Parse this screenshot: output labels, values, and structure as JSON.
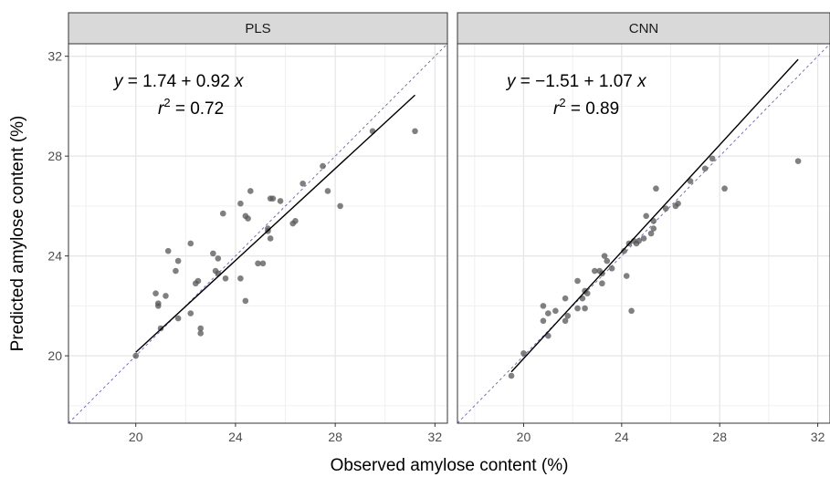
{
  "chart_data": {
    "type": "scatter",
    "xlabel": "Observed amylose content (%)",
    "ylabel": "Predicted amylose content (%)",
    "xlim": [
      17.3,
      32.5
    ],
    "ylim": [
      17.3,
      32.5
    ],
    "x_ticks": [
      20,
      24,
      28,
      32
    ],
    "y_ticks": [
      20,
      24,
      28,
      32
    ],
    "grid": true,
    "reference_line": "y = x",
    "panels": [
      {
        "name": "PLS",
        "equation": {
          "y": "y",
          "eq": " = 1.74 + 0.92 ",
          "x": "x"
        },
        "r2": {
          "r": "r",
          "sup": "2",
          "eq": " = 0.72"
        },
        "fit": {
          "intercept": 1.74,
          "slope": 0.92,
          "x_range": [
            20.0,
            31.2
          ]
        },
        "points": [
          [
            20.0,
            20.0
          ],
          [
            20.8,
            22.5
          ],
          [
            20.9,
            22.1
          ],
          [
            20.9,
            22.0
          ],
          [
            21.0,
            21.1
          ],
          [
            21.2,
            22.4
          ],
          [
            21.3,
            24.2
          ],
          [
            21.6,
            23.4
          ],
          [
            21.7,
            23.8
          ],
          [
            21.7,
            21.5
          ],
          [
            22.2,
            24.5
          ],
          [
            22.2,
            21.7
          ],
          [
            22.4,
            22.9
          ],
          [
            22.5,
            23.0
          ],
          [
            22.6,
            21.1
          ],
          [
            22.6,
            20.9
          ],
          [
            23.1,
            24.1
          ],
          [
            23.2,
            23.4
          ],
          [
            23.3,
            23.3
          ],
          [
            23.3,
            23.9
          ],
          [
            23.5,
            25.7
          ],
          [
            23.6,
            23.1
          ],
          [
            24.2,
            26.1
          ],
          [
            24.2,
            23.1
          ],
          [
            24.4,
            25.6
          ],
          [
            24.4,
            22.2
          ],
          [
            24.5,
            25.5
          ],
          [
            24.6,
            26.6
          ],
          [
            24.9,
            23.7
          ],
          [
            25.1,
            23.7
          ],
          [
            25.3,
            25.0
          ],
          [
            25.3,
            25.1
          ],
          [
            25.4,
            24.7
          ],
          [
            25.4,
            26.3
          ],
          [
            25.5,
            26.3
          ],
          [
            25.8,
            26.2
          ],
          [
            26.3,
            25.3
          ],
          [
            26.4,
            25.4
          ],
          [
            26.7,
            26.9
          ],
          [
            27.5,
            27.6
          ],
          [
            27.7,
            26.6
          ],
          [
            28.2,
            26.0
          ],
          [
            29.5,
            29.0
          ],
          [
            31.2,
            29.0
          ]
        ]
      },
      {
        "name": "CNN",
        "equation": {
          "y": "y",
          "eq": " = −1.51 + 1.07 ",
          "x": "x"
        },
        "r2": {
          "r": "r",
          "sup": "2",
          "eq": " = 0.89"
        },
        "fit": {
          "intercept": -1.51,
          "slope": 1.07,
          "x_range": [
            19.5,
            31.2
          ]
        },
        "points": [
          [
            19.5,
            19.2
          ],
          [
            20.0,
            20.1
          ],
          [
            20.8,
            22.0
          ],
          [
            20.8,
            21.4
          ],
          [
            21.0,
            20.8
          ],
          [
            21.0,
            21.7
          ],
          [
            21.3,
            21.8
          ],
          [
            21.7,
            21.4
          ],
          [
            21.7,
            22.3
          ],
          [
            21.8,
            21.6
          ],
          [
            22.2,
            23.0
          ],
          [
            22.2,
            21.9
          ],
          [
            22.4,
            22.3
          ],
          [
            22.5,
            22.6
          ],
          [
            22.5,
            21.9
          ],
          [
            22.6,
            22.5
          ],
          [
            22.9,
            23.4
          ],
          [
            23.1,
            23.4
          ],
          [
            23.2,
            23.3
          ],
          [
            23.2,
            22.9
          ],
          [
            23.3,
            24.0
          ],
          [
            23.4,
            23.8
          ],
          [
            23.6,
            23.5
          ],
          [
            24.1,
            24.2
          ],
          [
            24.2,
            23.2
          ],
          [
            24.3,
            24.5
          ],
          [
            24.4,
            21.8
          ],
          [
            24.5,
            24.6
          ],
          [
            24.6,
            24.5
          ],
          [
            24.7,
            24.6
          ],
          [
            24.9,
            24.7
          ],
          [
            25.0,
            25.6
          ],
          [
            25.2,
            24.9
          ],
          [
            25.3,
            25.1
          ],
          [
            25.3,
            25.4
          ],
          [
            25.4,
            26.7
          ],
          [
            25.8,
            25.9
          ],
          [
            26.2,
            26.0
          ],
          [
            26.3,
            26.1
          ],
          [
            26.8,
            27.0
          ],
          [
            27.4,
            27.5
          ],
          [
            27.7,
            27.9
          ],
          [
            28.2,
            26.7
          ],
          [
            31.2,
            27.8
          ]
        ]
      }
    ]
  }
}
